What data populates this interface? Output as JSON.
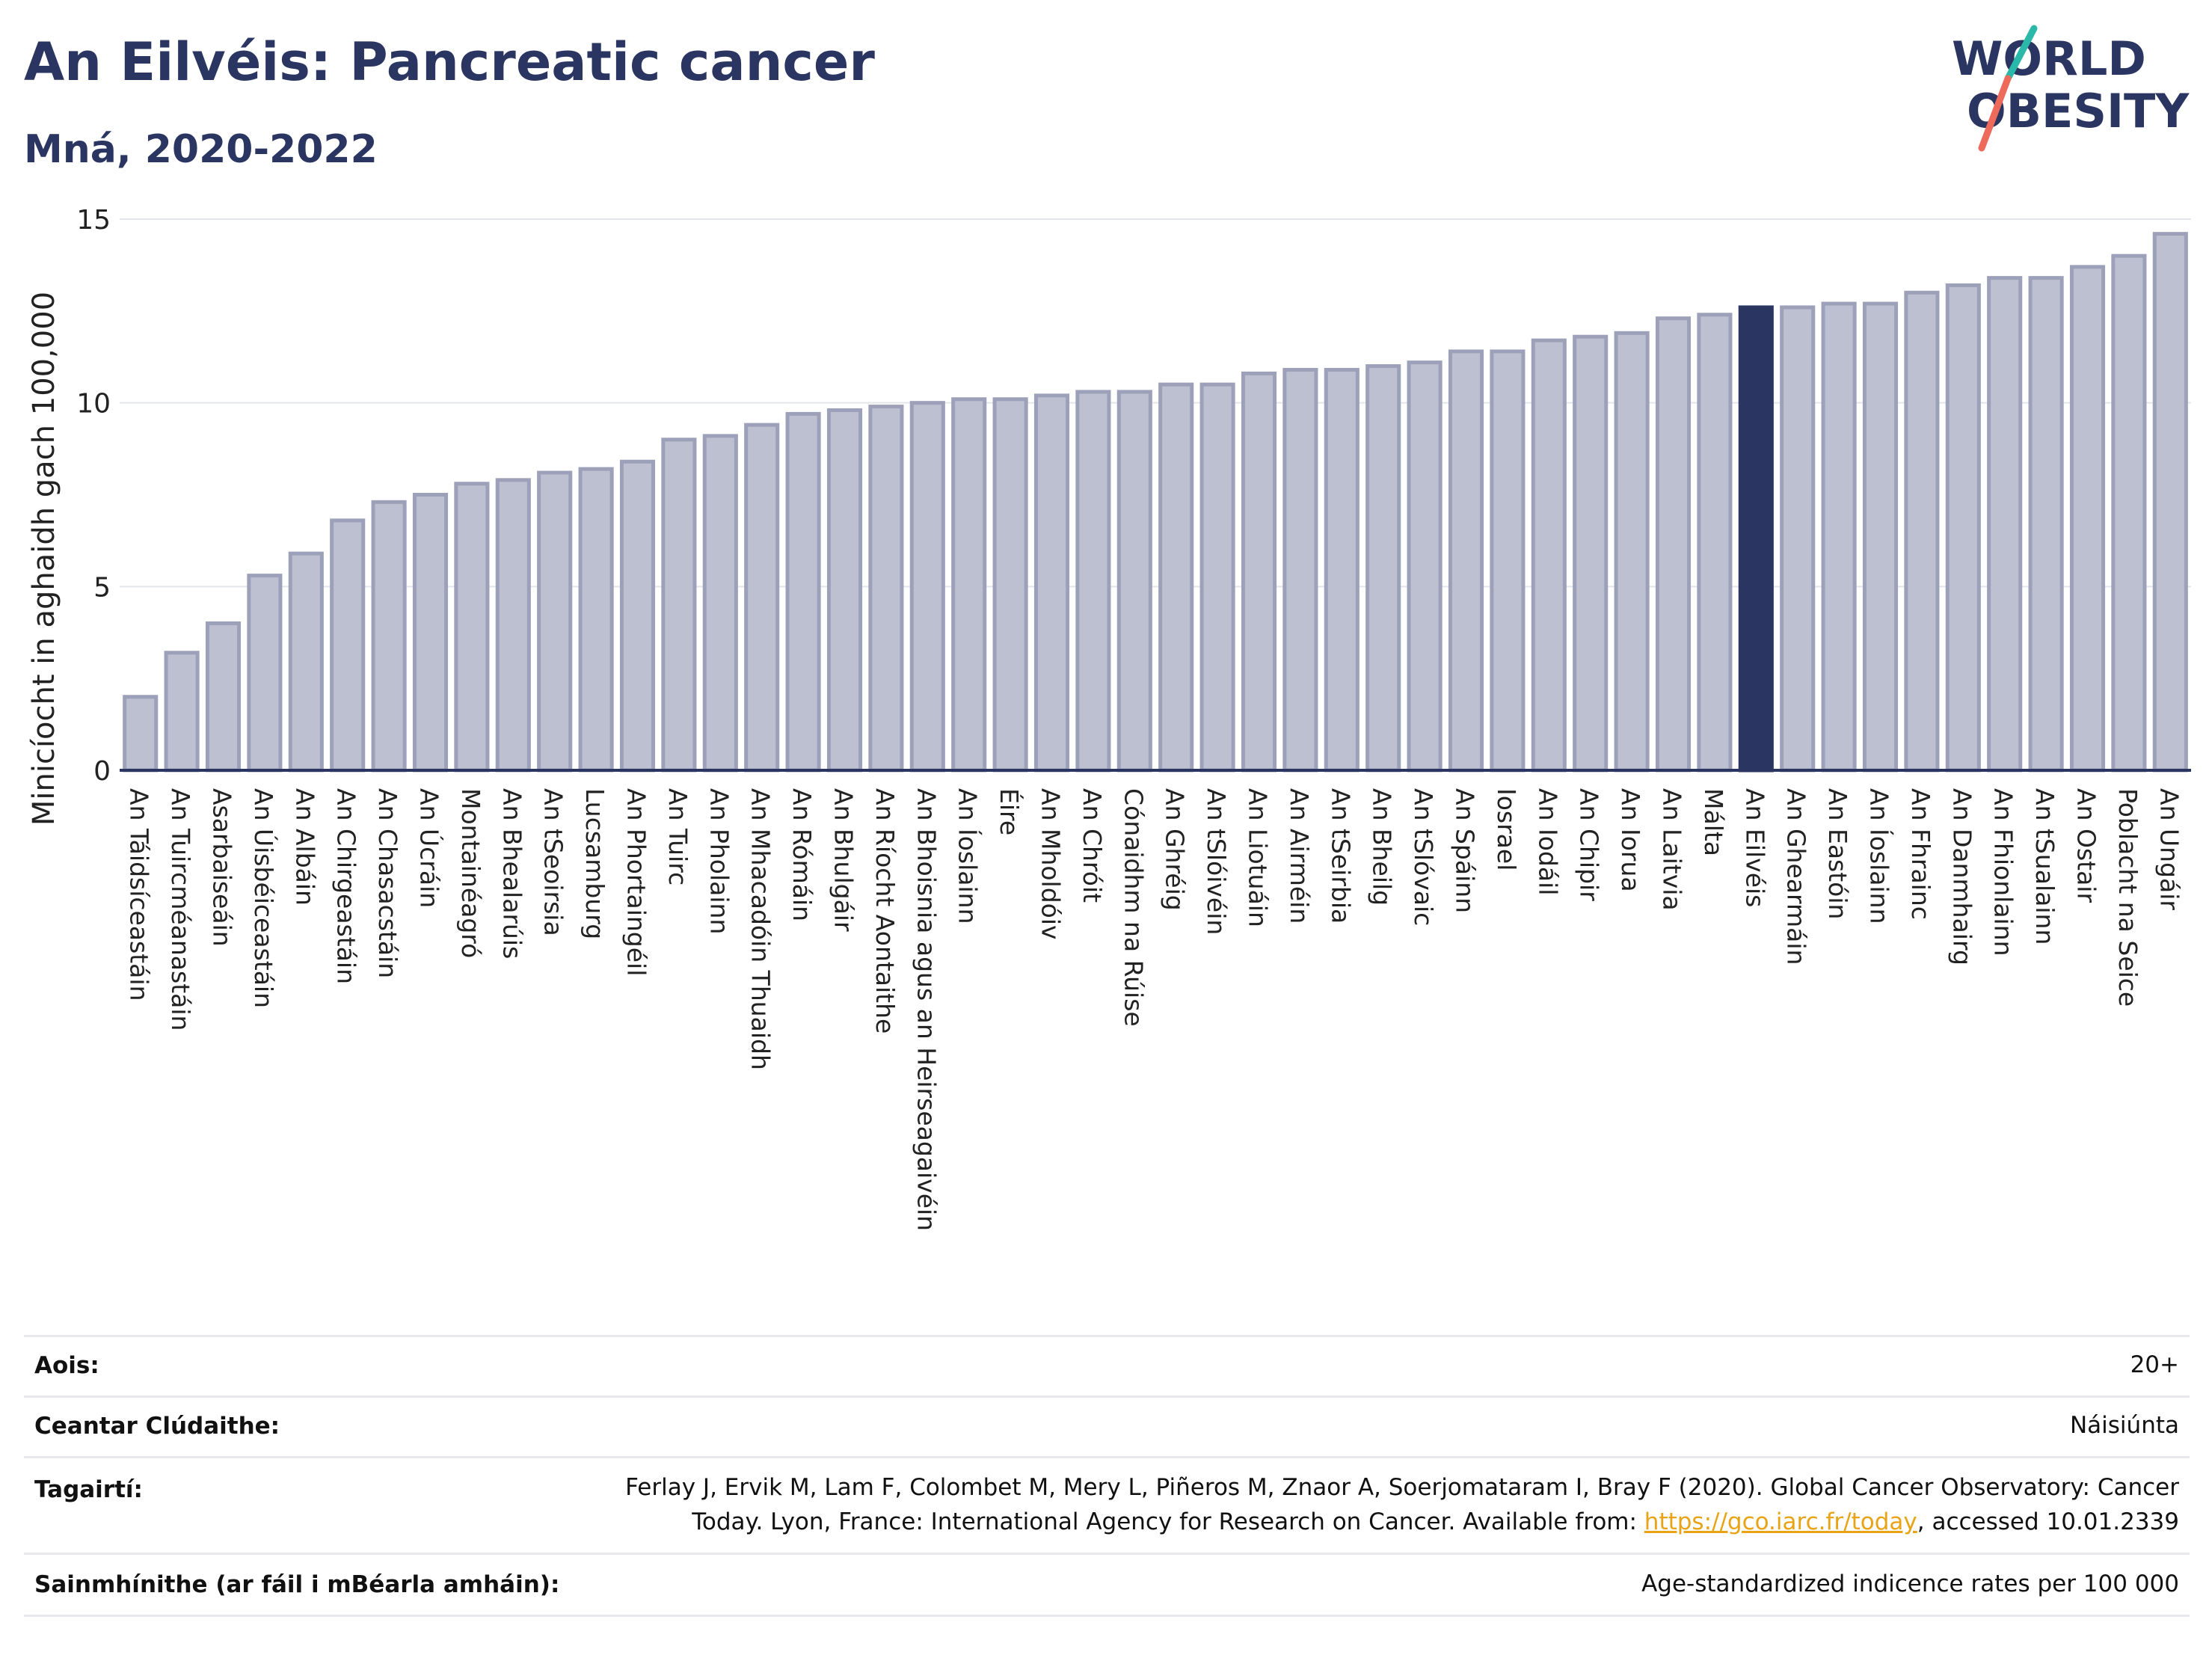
{
  "header": {
    "title": "An Eilvéis: Pancreatic cancer",
    "subtitle": "Mná, 2020-2022"
  },
  "logo": {
    "line1": "WORLD",
    "line2": "OBESITY"
  },
  "colors": {
    "highlight": "#2a3561",
    "bar_fill": "#bcc0d0",
    "bar_stroke": "#9ca1b9",
    "link": "#e8a416",
    "logo_teal": "#2ab8a8",
    "logo_coral": "#ee6b5c"
  },
  "chart_data": {
    "type": "bar",
    "ylabel": "Minicíocht in aghaidh gach 100,000",
    "ylim": [
      0,
      15
    ],
    "yticks": [
      0,
      5,
      10,
      15
    ],
    "grid": true,
    "highlight": "An Eilvéis",
    "categories": [
      "An Táidsíceastáin",
      "An Tuircméanastáin",
      "Asarbaiseáin",
      "An Úisbéiceastáin",
      "An Albáin",
      "An Chirgeastáin",
      "An Chasacstáin",
      "An Úcráin",
      "Montainéagró",
      "An Bhealarúis",
      "An tSeoirsia",
      "Lucsamburg",
      "An Phortaingéil",
      "An Tuirc",
      "An Pholainn",
      "An Mhacadóin Thuaidh",
      "An Rómáin",
      "An Bhulgáir",
      "An Ríocht Aontaithe",
      "An Bhoisnia agus an Heirseagaivéin",
      "An Íoslainn",
      "Éire",
      "An Mholdóiv",
      "An Chróit",
      "Cónaidhm na Rúise",
      "An Ghréig",
      "An tSlóivéin",
      "An Liotuáin",
      "An Airméin",
      "An tSeirbia",
      "An Bheilg",
      "An tSlóvaic",
      "An Spáinn",
      "Iosrael",
      "An Iodáil",
      "An Chipir",
      "An Iorua",
      "An Laitvia",
      "Málta",
      "An Eilvéis",
      "An Ghearmáin",
      "An Eastóin",
      "An Íoslainn",
      "An Fhrainc",
      "An Danmhairg",
      "An Fhionlainn",
      "An tSualainn",
      "An Ostair",
      "Poblacht na Seice",
      "An Ungáir"
    ],
    "values": [
      2.0,
      3.2,
      4.0,
      5.3,
      5.9,
      6.8,
      7.3,
      7.5,
      7.8,
      7.9,
      8.1,
      8.2,
      8.4,
      9.0,
      9.1,
      9.4,
      9.7,
      9.8,
      9.9,
      10.0,
      10.1,
      10.1,
      10.2,
      10.3,
      10.3,
      10.5,
      10.5,
      10.8,
      10.9,
      10.9,
      11.0,
      11.1,
      11.4,
      11.4,
      11.7,
      11.8,
      11.9,
      12.3,
      12.4,
      12.6,
      12.6,
      12.7,
      12.7,
      13.0,
      13.2,
      13.4,
      13.4,
      13.7,
      14.0,
      14.6
    ]
  },
  "info": [
    {
      "label": "Aois:",
      "value": "20+"
    },
    {
      "label": "Ceantar Clúdaithe:",
      "value": "Náisiúnta"
    },
    {
      "label": "Tagairtí:",
      "value_line1": "Ferlay J, Ervik M, Lam F, Colombet M, Mery L, Piñeros M, Znaor A, Soerjomataram I, Bray F (2020). Global Cancer Observatory: Cancer",
      "value_line2_pre": "Today. Lyon, France: International Agency for Research on Cancer. Available from: ",
      "link": "https://gco.iarc.fr/today",
      "value_line2_post": ", accessed 10.01.2339"
    },
    {
      "label": "Sainmhínithe (ar fáil i mBéarla amháin):",
      "value": "Age-standardized indicence rates per 100 000"
    }
  ]
}
